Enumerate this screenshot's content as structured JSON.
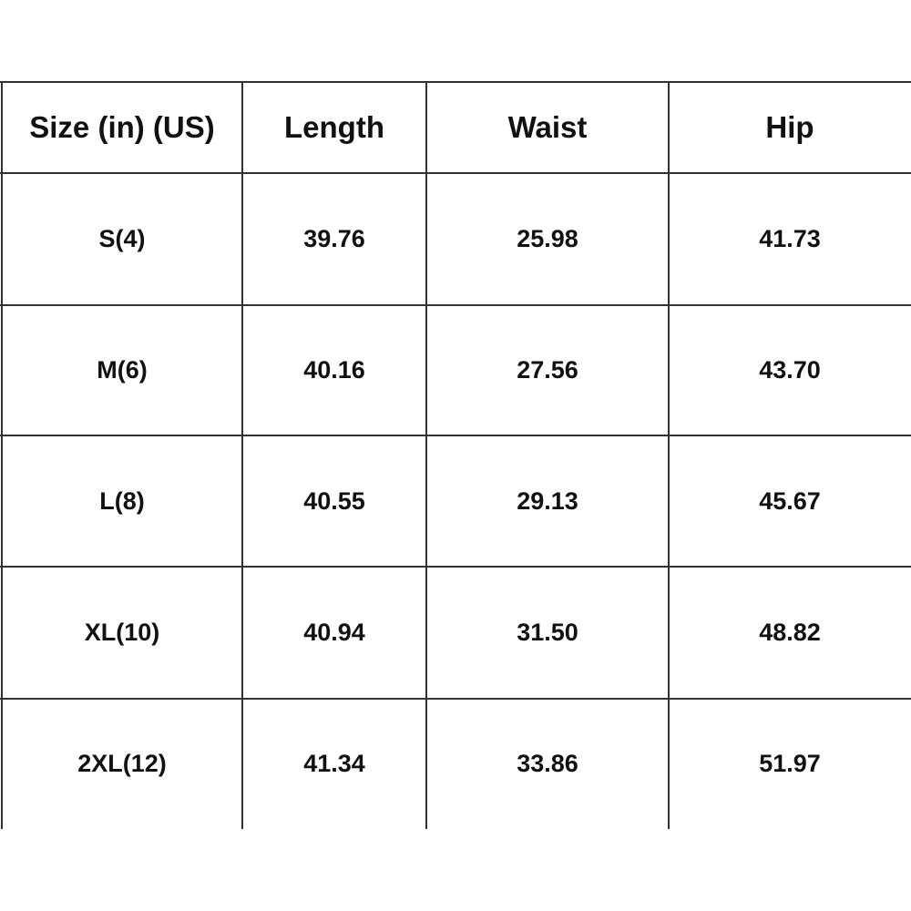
{
  "table": {
    "headers": [
      "Size  (in)  (US)",
      "Length",
      "Waist",
      "Hip"
    ],
    "rows": [
      [
        "S(4)",
        "39.76",
        "25.98",
        "41.73"
      ],
      [
        "M(6)",
        "40.16",
        "27.56",
        "43.70"
      ],
      [
        "L(8)",
        "40.55",
        "29.13",
        "45.67"
      ],
      [
        "XL(10)",
        "40.94",
        "31.50",
        "48.82"
      ],
      [
        "2XL(12)",
        "41.34",
        "33.86",
        "51.97"
      ]
    ]
  }
}
